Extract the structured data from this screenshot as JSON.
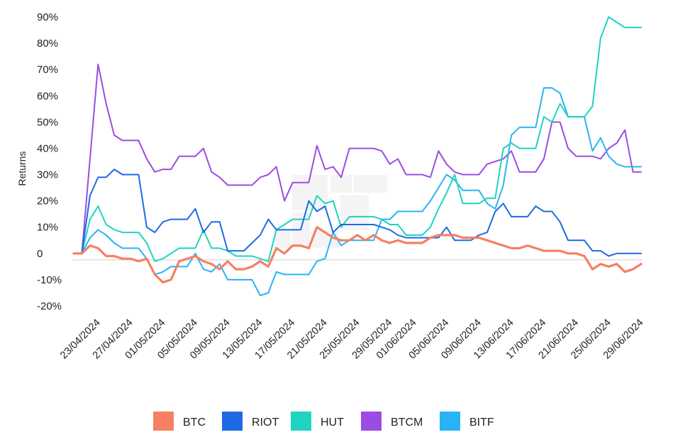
{
  "chart_data": {
    "type": "line",
    "ylabel": "Returns",
    "xlabel": "",
    "ylim": [
      -20,
      90
    ],
    "y_ticks": [
      {
        "value": 90,
        "label": "90%"
      },
      {
        "value": 80,
        "label": "80%"
      },
      {
        "value": 70,
        "label": "70%"
      },
      {
        "value": 60,
        "label": "60%"
      },
      {
        "value": 50,
        "label": "50%"
      },
      {
        "value": 40,
        "label": "40%"
      },
      {
        "value": 30,
        "label": "30%"
      },
      {
        "value": 20,
        "label": "20%"
      },
      {
        "value": 10,
        "label": "10%"
      },
      {
        "value": 0,
        "label": "0"
      },
      {
        "value": -10,
        "label": "-10%"
      },
      {
        "value": -20,
        "label": "-20%"
      }
    ],
    "zero_line": true,
    "grid": false,
    "legend_position": "bottom",
    "x_labels": [
      "23/04/2024",
      "27/04/2024",
      "01/05/2024",
      "05/05/2024",
      "09/05/2024",
      "13/05/2024",
      "17/05/2024",
      "21/05/2024",
      "25/05/2024",
      "29/05/2024",
      "01/06/2024",
      "05/06/2024",
      "09/06/2024",
      "13/06/2024",
      "17/06/2024",
      "21/06/2024",
      "25/06/2024",
      "29/06/2024"
    ],
    "x_label_positions": [
      0,
      4,
      8,
      12,
      16,
      20,
      24,
      28,
      32,
      36,
      39,
      43,
      47,
      51,
      55,
      59,
      63,
      67
    ],
    "series": [
      {
        "name": "BTC",
        "color": "#F77F63",
        "stroke_width": 3.2,
        "order": 5,
        "values": [
          0,
          0,
          3,
          2,
          -1,
          -1,
          -2,
          -2,
          -3,
          -2,
          -8,
          -11,
          -10,
          -3,
          -2,
          -1,
          -3,
          -4,
          -6,
          -3,
          -6,
          -6,
          -5,
          -3,
          -5,
          2,
          0,
          3,
          3,
          2,
          10,
          8,
          6,
          5,
          5,
          7,
          5,
          7,
          5,
          4,
          5,
          4,
          4,
          4,
          6,
          7,
          7,
          7,
          6,
          6,
          6,
          5,
          4,
          3,
          2,
          2,
          3,
          2,
          1,
          1,
          1,
          0,
          0,
          -1,
          -6,
          -4,
          -5,
          -4,
          -7,
          -6,
          -4
        ]
      },
      {
        "name": "RIOT",
        "color": "#1E6AE5",
        "stroke_width": 2.0,
        "order": 4,
        "values": [
          0,
          0,
          22,
          29,
          29,
          32,
          30,
          30,
          30,
          10,
          8,
          12,
          13,
          13,
          13,
          17,
          8,
          12,
          12,
          1,
          1,
          1,
          4,
          7,
          13,
          9,
          9,
          9,
          9,
          20,
          16,
          18,
          8,
          11,
          11,
          11,
          11,
          11,
          10,
          9,
          7,
          6,
          6,
          6,
          6,
          6,
          10,
          5,
          5,
          5,
          7,
          8,
          16,
          19,
          14,
          14,
          14,
          18,
          16,
          16,
          12,
          5,
          5,
          5,
          1,
          1,
          -1,
          0,
          0,
          0,
          0
        ]
      },
      {
        "name": "HUT",
        "color": "#1FD3C0",
        "stroke_width": 2.0,
        "order": 3,
        "values": [
          0,
          0,
          13,
          18,
          11,
          9,
          8,
          8,
          8,
          4,
          -3,
          -2,
          0,
          2,
          2,
          2,
          9,
          2,
          2,
          1,
          -1,
          -1,
          -1,
          -2,
          -3,
          9,
          11,
          13,
          13,
          13,
          22,
          19,
          20,
          10,
          14,
          14,
          14,
          14,
          13,
          11,
          11,
          7,
          7,
          7,
          10,
          17,
          23,
          30,
          19,
          19,
          19,
          21,
          21,
          40,
          42,
          40,
          40,
          40,
          52,
          50,
          57,
          52,
          52,
          52,
          56,
          82,
          90,
          88,
          86,
          86,
          86
        ]
      },
      {
        "name": "BTCM",
        "color": "#9B4CE3",
        "stroke_width": 2.0,
        "order": 1,
        "values": [
          0,
          0,
          36,
          72,
          57,
          45,
          43,
          43,
          43,
          36,
          31,
          32,
          32,
          37,
          37,
          37,
          40,
          31,
          29,
          26,
          26,
          26,
          26,
          29,
          30,
          33,
          20,
          27,
          27,
          27,
          41,
          32,
          33,
          29,
          40,
          40,
          40,
          40,
          39,
          34,
          36,
          30,
          30,
          30,
          29,
          39,
          34,
          31,
          30,
          30,
          30,
          34,
          35,
          36,
          39,
          31,
          31,
          31,
          36,
          50,
          50,
          40,
          37,
          37,
          37,
          36,
          40,
          42,
          47,
          31,
          31
        ]
      },
      {
        "name": "BITF",
        "color": "#29B3F5",
        "stroke_width": 2.0,
        "order": 2,
        "values": [
          0,
          0,
          6,
          9,
          7,
          4,
          2,
          2,
          2,
          -2,
          -8,
          -7,
          -5,
          -5,
          -5,
          0,
          -6,
          -7,
          -4,
          -10,
          -10,
          -10,
          -10,
          -16,
          -15,
          -7,
          -8,
          -8,
          -8,
          -8,
          -3,
          -2,
          8,
          3,
          5,
          5,
          5,
          5,
          13,
          13,
          16,
          16,
          16,
          16,
          20,
          25,
          30,
          28,
          24,
          24,
          24,
          19,
          17,
          26,
          45,
          48,
          48,
          48,
          63,
          63,
          61,
          52,
          52,
          52,
          39,
          44,
          37,
          34,
          33,
          33,
          33
        ]
      }
    ]
  },
  "legend": {
    "items": [
      {
        "label": "BTC",
        "color": "#F77F63"
      },
      {
        "label": "RIOT",
        "color": "#1E6AE5"
      },
      {
        "label": "HUT",
        "color": "#1FD3C0"
      },
      {
        "label": "BTCM",
        "color": "#9B4CE3"
      },
      {
        "label": "BITF",
        "color": "#29B3F5"
      }
    ]
  }
}
